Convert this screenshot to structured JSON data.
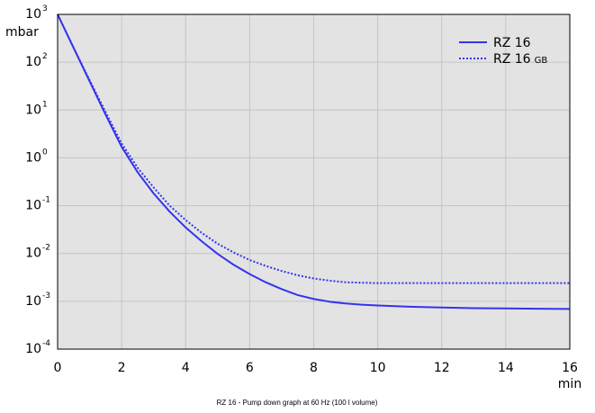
{
  "chart_data": {
    "type": "line",
    "title": "",
    "caption": "RZ 16 - Pump down graph at 60 Hz (100 l volume)",
    "xlabel": "min",
    "ylabel": "mbar",
    "xlim": [
      0,
      16
    ],
    "ylim": [
      0.0001,
      1000
    ],
    "y_scale": "log",
    "grid": true,
    "legend_position": "top-right",
    "x_ticks": [
      "0",
      "2",
      "4",
      "6",
      "8",
      "10",
      "12",
      "14",
      "16"
    ],
    "y_ticks": [
      {
        "base": "10",
        "exp": "3"
      },
      {
        "base": "10",
        "exp": "2"
      },
      {
        "base": "10",
        "exp": "1"
      },
      {
        "base": "10",
        "exp": "0"
      },
      {
        "base": "10",
        "exp": "-1"
      },
      {
        "base": "10",
        "exp": "-2"
      },
      {
        "base": "10",
        "exp": "-3"
      },
      {
        "base": "10",
        "exp": "-4"
      }
    ],
    "series": [
      {
        "name": "RZ 16",
        "style": "solid",
        "color": "#3333ee",
        "x": [
          0,
          0.5,
          1,
          1.5,
          2,
          2.5,
          3,
          3.5,
          4,
          4.5,
          5,
          5.5,
          6,
          6.5,
          7,
          7.5,
          8,
          8.5,
          9,
          9.5,
          10,
          11,
          12,
          13,
          14,
          15,
          16
        ],
        "y": [
          1000,
          200,
          40,
          8,
          1.7,
          0.5,
          0.18,
          0.075,
          0.035,
          0.018,
          0.0098,
          0.0058,
          0.0037,
          0.0025,
          0.0018,
          0.00135,
          0.00112,
          0.00098,
          0.0009,
          0.00085,
          0.00082,
          0.00077,
          0.00074,
          0.00072,
          0.00071,
          0.0007,
          0.00069
        ]
      },
      {
        "name": "RZ 16 GB",
        "style": "dotted",
        "color": "#3333ee",
        "x": [
          0,
          0.5,
          1,
          1.5,
          2,
          2.5,
          3,
          3.5,
          4,
          4.5,
          5,
          5.5,
          6,
          6.5,
          7,
          7.5,
          8,
          8.5,
          9,
          9.5,
          10,
          11,
          12,
          13,
          14,
          15,
          16
        ],
        "y": [
          1000,
          200,
          42,
          9,
          2,
          0.62,
          0.24,
          0.1,
          0.05,
          0.027,
          0.016,
          0.0105,
          0.0073,
          0.0055,
          0.0043,
          0.0035,
          0.003,
          0.0027,
          0.0025,
          0.00245,
          0.0024,
          0.0024,
          0.0024,
          0.0024,
          0.0024,
          0.0024,
          0.0024
        ]
      }
    ],
    "legend": [
      {
        "label": "RZ 16",
        "suffix": "",
        "style": "solid"
      },
      {
        "label": "RZ 16",
        "suffix": "GB",
        "style": "dotted"
      }
    ],
    "colors": {
      "plot_background": "#e3e3e3",
      "grid": "#c4c4c4",
      "axis": "#000000",
      "line": "#3333ee"
    }
  }
}
